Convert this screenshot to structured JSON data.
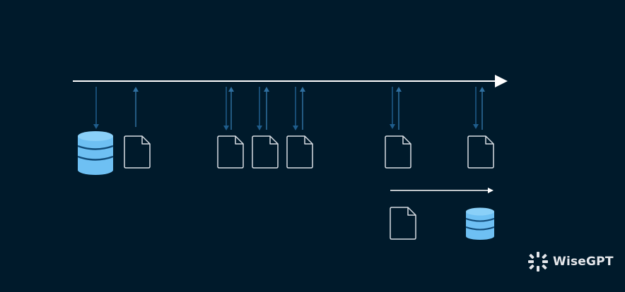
{
  "brand": {
    "watermark_text": "WiseGPT",
    "logo_icon": "wisegpt-logo-icon"
  },
  "colors": {
    "background": "#001a2b",
    "timeline": "#ffffff",
    "arrow_down": "#1f5d8c",
    "arrow_up": "#2f6fa0",
    "file_stroke": "#d8dde3",
    "database_fill": "#6ec0f3",
    "database_band": "#0f4a77"
  },
  "icons": {
    "database": "database-icon",
    "file": "file-icon",
    "timeline_arrow": "arrowhead-icon"
  },
  "labels": []
}
